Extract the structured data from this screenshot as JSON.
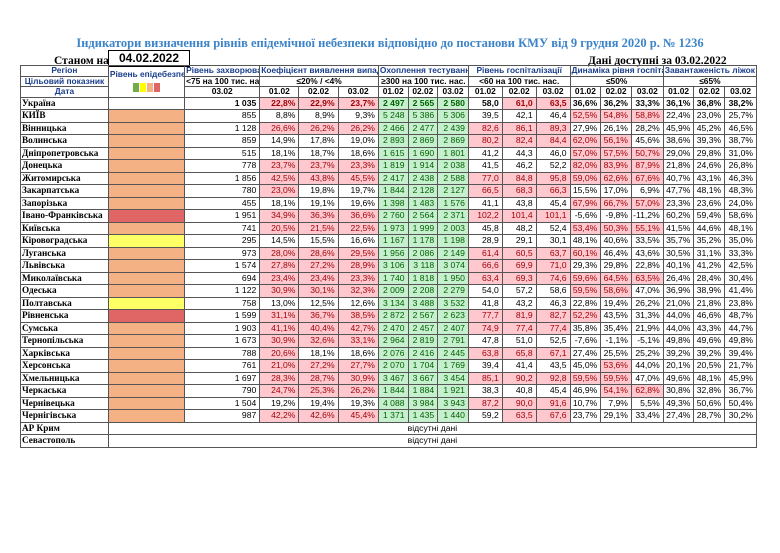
{
  "title": "Індикатори визначення рівнів епідемічної небезпеки відповідно до постанови КМУ від 9 грудня 2020 р. № 1236",
  "status_label": "Станом на",
  "status_date": "04.02.2022",
  "available_label": "Дані доступні за 03.02.2022",
  "headers": {
    "region": "Регіон",
    "target": "Цільовий показник",
    "date": "Дата",
    "risk": "Рівень епідебезпеки",
    "incidence": "Рівень захворюваності",
    "incidence_note": "<75 на 100 тис. нас.",
    "detection": "Коефіцієнт виявлення випадків інфікування",
    "detection_note": "≤20% / <4%",
    "testing": "Охоплення тестуванням",
    "testing_note": "≥300 на 100 тис. нас.",
    "hosp": "Рівень госпіталізації",
    "hosp_note": "<60 на 100 тис. нас.",
    "hosp_dyn": "Динаміка рівня госпіталізації",
    "hosp_dyn_note": "≤50%",
    "beds": "Завантаженість ліжок з киснем",
    "beds_note": "≤65%",
    "d1": "01.02",
    "d2": "02.02",
    "d3": "03.02"
  },
  "risk_bar_colors": [
    "#70ad47",
    "#ffff00",
    "#f4b183",
    "#e06666"
  ],
  "rows": [
    {
      "name": "Україна",
      "risk": "none",
      "inc": "1 035",
      "det": [
        "22,8%",
        "22,9%",
        "23,7%"
      ],
      "det_c": [
        "r",
        "r",
        "r"
      ],
      "test": [
        "2 497",
        "2 565",
        "2 580"
      ],
      "hosp": [
        "58,0",
        "61,0",
        "63,5"
      ],
      "hosp_c": [
        "",
        "r",
        "r"
      ],
      "dyn": [
        "36,6%",
        "36,2%",
        "33,3%"
      ],
      "beds": [
        "36,1%",
        "36,8%",
        "38,2%"
      ],
      "bold": true
    },
    {
      "name": "КИЇВ",
      "risk": "orange",
      "inc": "855",
      "det": [
        "8,8%",
        "8,9%",
        "9,3%"
      ],
      "det_c": [
        "",
        "",
        ""
      ],
      "test": [
        "5 248",
        "5 386",
        "5 306"
      ],
      "hosp": [
        "39,5",
        "42,1",
        "46,4"
      ],
      "hosp_c": [
        "",
        "",
        ""
      ],
      "dyn": [
        "52,5%",
        "54,8%",
        "58,8%"
      ],
      "dyn_c": [
        "r",
        "r",
        "r"
      ],
      "beds": [
        "22,4%",
        "23,0%",
        "25,7%"
      ]
    },
    {
      "name": "Вінницька",
      "risk": "orange",
      "inc": "1 128",
      "det": [
        "26,6%",
        "26,2%",
        "26,2%"
      ],
      "det_c": [
        "r",
        "r",
        "r"
      ],
      "test": [
        "2 466",
        "2 477",
        "2 439"
      ],
      "hosp": [
        "82,6",
        "86,1",
        "89,3"
      ],
      "hosp_c": [
        "r",
        "r",
        "r"
      ],
      "dyn": [
        "27,9%",
        "26,1%",
        "28,2%"
      ],
      "beds": [
        "45,9%",
        "45,2%",
        "46,5%"
      ]
    },
    {
      "name": "Волинська",
      "risk": "orange",
      "inc": "859",
      "det": [
        "14,9%",
        "17,8%",
        "19,0%"
      ],
      "det_c": [
        "",
        "",
        ""
      ],
      "test": [
        "2 893",
        "2 869",
        "2 869"
      ],
      "hosp": [
        "80,2",
        "82,4",
        "84,4"
      ],
      "hosp_c": [
        "r",
        "r",
        "r"
      ],
      "dyn": [
        "62,0%",
        "56,1%",
        "45,6%"
      ],
      "dyn_c": [
        "r",
        "r",
        ""
      ],
      "beds": [
        "38,6%",
        "39,3%",
        "38,7%"
      ]
    },
    {
      "name": "Дніпропетровська",
      "risk": "orange",
      "inc": "515",
      "det": [
        "18,1%",
        "18,7%",
        "18,6%"
      ],
      "det_c": [
        "",
        "",
        ""
      ],
      "test": [
        "1 615",
        "1 690",
        "1 801"
      ],
      "hosp": [
        "41,2",
        "44,3",
        "46,0"
      ],
      "hosp_c": [
        "",
        "",
        ""
      ],
      "dyn": [
        "57,0%",
        "57,5%",
        "50,7%"
      ],
      "dyn_c": [
        "r",
        "r",
        "r"
      ],
      "beds": [
        "29,0%",
        "29,8%",
        "31,0%"
      ]
    },
    {
      "name": "Донецька",
      "risk": "orange",
      "inc": "778",
      "det": [
        "23,7%",
        "23,7%",
        "23,3%"
      ],
      "det_c": [
        "r",
        "r",
        "r"
      ],
      "test": [
        "1 819",
        "1 914",
        "2 038"
      ],
      "hosp": [
        "41,5",
        "46,2",
        "52,2"
      ],
      "hosp_c": [
        "",
        "",
        ""
      ],
      "dyn": [
        "82,0%",
        "83,9%",
        "87,9%"
      ],
      "dyn_c": [
        "r",
        "r",
        "r"
      ],
      "beds": [
        "21,8%",
        "24,6%",
        "26,8%"
      ]
    },
    {
      "name": "Житомирська",
      "risk": "orange",
      "inc": "1 856",
      "det": [
        "42,5%",
        "43,8%",
        "45,5%"
      ],
      "det_c": [
        "r",
        "r",
        "r"
      ],
      "test": [
        "2 417",
        "2 438",
        "2 588"
      ],
      "hosp": [
        "77,0",
        "84,8",
        "95,8"
      ],
      "hosp_c": [
        "r",
        "r",
        "r"
      ],
      "dyn": [
        "59,0%",
        "62,6%",
        "67,6%"
      ],
      "dyn_c": [
        "r",
        "r",
        "r"
      ],
      "beds": [
        "40,7%",
        "43,1%",
        "46,3%"
      ]
    },
    {
      "name": "Закарпатська",
      "risk": "orange",
      "inc": "780",
      "det": [
        "23,0%",
        "19,8%",
        "19,7%"
      ],
      "det_c": [
        "r",
        "",
        ""
      ],
      "test": [
        "1 844",
        "2 128",
        "2 127"
      ],
      "hosp": [
        "66,5",
        "68,3",
        "66,3"
      ],
      "hosp_c": [
        "r",
        "r",
        "r"
      ],
      "dyn": [
        "15,5%",
        "17,0%",
        "6,9%"
      ],
      "beds": [
        "47,7%",
        "48,1%",
        "48,3%"
      ]
    },
    {
      "name": "Запорізька",
      "risk": "orange",
      "inc": "455",
      "det": [
        "18,1%",
        "19,1%",
        "19,6%"
      ],
      "det_c": [
        "",
        "",
        ""
      ],
      "test": [
        "1 398",
        "1 483",
        "1 576"
      ],
      "hosp": [
        "41,1",
        "43,8",
        "45,4"
      ],
      "hosp_c": [
        "",
        "",
        ""
      ],
      "dyn": [
        "67,9%",
        "66,7%",
        "57,0%"
      ],
      "dyn_c": [
        "r",
        "r",
        "r"
      ],
      "beds": [
        "23,3%",
        "23,6%",
        "24,0%"
      ]
    },
    {
      "name": "Івано-Франківська",
      "risk": "red",
      "inc": "1 951",
      "det": [
        "34,9%",
        "36,3%",
        "36,6%"
      ],
      "det_c": [
        "r",
        "r",
        "r"
      ],
      "test": [
        "2 760",
        "2 564",
        "2 371"
      ],
      "hosp": [
        "102,2",
        "101,4",
        "101,1"
      ],
      "hosp_c": [
        "r",
        "r",
        "r"
      ],
      "dyn": [
        "-5,6%",
        "-9,8%",
        "-11,2%"
      ],
      "beds": [
        "60,2%",
        "59,4%",
        "58,6%"
      ]
    },
    {
      "name": "Київська",
      "risk": "orange",
      "inc": "741",
      "det": [
        "20,5%",
        "21,5%",
        "22,5%"
      ],
      "det_c": [
        "r",
        "r",
        "r"
      ],
      "test": [
        "1 973",
        "1 999",
        "2 003"
      ],
      "hosp": [
        "45,8",
        "48,2",
        "52,4"
      ],
      "hosp_c": [
        "",
        "",
        ""
      ],
      "dyn": [
        "53,4%",
        "50,3%",
        "55,1%"
      ],
      "dyn_c": [
        "r",
        "r",
        "r"
      ],
      "beds": [
        "41,5%",
        "44,6%",
        "48,1%"
      ]
    },
    {
      "name": "Кіровоградська",
      "risk": "yellow",
      "inc": "295",
      "det": [
        "14,5%",
        "15,5%",
        "16,6%"
      ],
      "det_c": [
        "",
        "",
        ""
      ],
      "test": [
        "1 167",
        "1 178",
        "1 198"
      ],
      "hosp": [
        "28,9",
        "29,1",
        "30,1"
      ],
      "hosp_c": [
        "",
        "",
        ""
      ],
      "dyn": [
        "48,1%",
        "40,6%",
        "33,5%"
      ],
      "beds": [
        "35,7%",
        "35,2%",
        "35,0%"
      ]
    },
    {
      "name": "Луганська",
      "risk": "orange",
      "inc": "973",
      "det": [
        "28,0%",
        "28,6%",
        "29,5%"
      ],
      "det_c": [
        "r",
        "r",
        "r"
      ],
      "test": [
        "1 956",
        "2 086",
        "2 149"
      ],
      "hosp": [
        "61,4",
        "60,5",
        "63,7"
      ],
      "hosp_c": [
        "r",
        "r",
        "r"
      ],
      "dyn": [
        "60,1%",
        "46,4%",
        "43,6%"
      ],
      "dyn_c": [
        "r",
        "",
        ""
      ],
      "beds": [
        "30,5%",
        "31,1%",
        "33,3%"
      ]
    },
    {
      "name": "Львівська",
      "risk": "orange",
      "inc": "1 574",
      "det": [
        "27,8%",
        "27,2%",
        "28,9%"
      ],
      "det_c": [
        "r",
        "r",
        "r"
      ],
      "test": [
        "3 106",
        "3 118",
        "3 074"
      ],
      "hosp": [
        "66,6",
        "69,9",
        "71,0"
      ],
      "hosp_c": [
        "r",
        "r",
        "r"
      ],
      "dyn": [
        "29,3%",
        "29,8%",
        "22,8%"
      ],
      "beds": [
        "40,1%",
        "41,2%",
        "42,5%"
      ]
    },
    {
      "name": "Миколаївська",
      "risk": "orange",
      "inc": "694",
      "det": [
        "23,4%",
        "23,4%",
        "23,3%"
      ],
      "det_c": [
        "r",
        "r",
        "r"
      ],
      "test": [
        "1 740",
        "1 818",
        "1 950"
      ],
      "hosp": [
        "63,4",
        "69,3",
        "74,6"
      ],
      "hosp_c": [
        "r",
        "r",
        "r"
      ],
      "dyn": [
        "59,6%",
        "64,5%",
        "63,5%"
      ],
      "dyn_c": [
        "r",
        "r",
        "r"
      ],
      "beds": [
        "26,4%",
        "28,4%",
        "30,4%"
      ]
    },
    {
      "name": "Одеська",
      "risk": "orange",
      "inc": "1 122",
      "det": [
        "30,9%",
        "30,1%",
        "32,3%"
      ],
      "det_c": [
        "r",
        "r",
        "r"
      ],
      "test": [
        "2 009",
        "2 208",
        "2 279"
      ],
      "hosp": [
        "54,0",
        "57,2",
        "58,6"
      ],
      "hosp_c": [
        "",
        "",
        ""
      ],
      "dyn": [
        "59,5%",
        "58,6%",
        "47,0%"
      ],
      "dyn_c": [
        "r",
        "r",
        ""
      ],
      "beds": [
        "36,9%",
        "38,9%",
        "41,4%"
      ]
    },
    {
      "name": "Полтавська",
      "risk": "yellow",
      "inc": "758",
      "det": [
        "13,0%",
        "12,5%",
        "12,6%"
      ],
      "det_c": [
        "",
        "",
        ""
      ],
      "test": [
        "3 134",
        "3 488",
        "3 532"
      ],
      "hosp": [
        "41,8",
        "43,2",
        "46,3"
      ],
      "hosp_c": [
        "",
        "",
        ""
      ],
      "dyn": [
        "22,8%",
        "19,4%",
        "26,2%"
      ],
      "beds": [
        "21,0%",
        "21,8%",
        "23,8%"
      ]
    },
    {
      "name": "Рівненська",
      "risk": "red",
      "inc": "1 599",
      "det": [
        "31,1%",
        "36,7%",
        "38,5%"
      ],
      "det_c": [
        "r",
        "r",
        "r"
      ],
      "test": [
        "2 872",
        "2 567",
        "2 623"
      ],
      "hosp": [
        "77,7",
        "81,9",
        "82,7"
      ],
      "hosp_c": [
        "r",
        "r",
        "r"
      ],
      "dyn": [
        "52,2%",
        "43,5%",
        "31,3%"
      ],
      "dyn_c": [
        "r",
        "",
        ""
      ],
      "beds": [
        "44,0%",
        "46,6%",
        "48,7%"
      ]
    },
    {
      "name": "Сумська",
      "risk": "orange",
      "inc": "1 903",
      "det": [
        "41,1%",
        "40,4%",
        "42,7%"
      ],
      "det_c": [
        "r",
        "r",
        "r"
      ],
      "test": [
        "2 470",
        "2 457",
        "2 407"
      ],
      "hosp": [
        "74,9",
        "77,4",
        "77,4"
      ],
      "hosp_c": [
        "r",
        "r",
        "r"
      ],
      "dyn": [
        "35,8%",
        "35,4%",
        "21,9%"
      ],
      "beds": [
        "44,0%",
        "43,3%",
        "44,7%"
      ]
    },
    {
      "name": "Тернопільська",
      "risk": "orange",
      "inc": "1 673",
      "det": [
        "30,9%",
        "32,6%",
        "33,1%"
      ],
      "det_c": [
        "r",
        "r",
        "r"
      ],
      "test": [
        "2 964",
        "2 819",
        "2 791"
      ],
      "hosp": [
        "47,8",
        "51,0",
        "52,5"
      ],
      "hosp_c": [
        "",
        "",
        ""
      ],
      "dyn": [
        "-7,6%",
        "-1,1%",
        "-5,1%"
      ],
      "beds": [
        "49,8%",
        "49,6%",
        "49,8%"
      ]
    },
    {
      "name": "Харківська",
      "risk": "orange",
      "inc": "788",
      "det": [
        "20,6%",
        "18,1%",
        "18,6%"
      ],
      "det_c": [
        "r",
        "",
        ""
      ],
      "test": [
        "2 076",
        "2 416",
        "2 445"
      ],
      "hosp": [
        "63,8",
        "65,8",
        "67,1"
      ],
      "hosp_c": [
        "r",
        "r",
        "r"
      ],
      "dyn": [
        "27,4%",
        "25,5%",
        "25,2%"
      ],
      "beds": [
        "39,2%",
        "39,2%",
        "39,4%"
      ]
    },
    {
      "name": "Херсонська",
      "risk": "orange",
      "inc": "761",
      "det": [
        "21,0%",
        "27,2%",
        "27,7%"
      ],
      "det_c": [
        "r",
        "r",
        "r"
      ],
      "test": [
        "2 070",
        "1 704",
        "1 769"
      ],
      "hosp": [
        "39,4",
        "41,4",
        "43,5"
      ],
      "hosp_c": [
        "",
        "",
        ""
      ],
      "dyn": [
        "45,0%",
        "53,6%",
        "44,0%"
      ],
      "dyn_c": [
        "",
        "r",
        ""
      ],
      "beds": [
        "20,1%",
        "20,5%",
        "21,7%"
      ]
    },
    {
      "name": "Хмельницька",
      "risk": "orange",
      "inc": "1 697",
      "det": [
        "28,3%",
        "28,7%",
        "30,9%"
      ],
      "det_c": [
        "r",
        "r",
        "r"
      ],
      "test": [
        "3 467",
        "3 667",
        "3 454"
      ],
      "hosp": [
        "85,1",
        "90,2",
        "92,8"
      ],
      "hosp_c": [
        "r",
        "r",
        "r"
      ],
      "dyn": [
        "59,5%",
        "59,5%",
        "47,0%"
      ],
      "dyn_c": [
        "r",
        "r",
        ""
      ],
      "beds": [
        "49,6%",
        "48,1%",
        "45,9%"
      ]
    },
    {
      "name": "Черкаська",
      "risk": "orange",
      "inc": "790",
      "det": [
        "24,7%",
        "25,3%",
        "26,2%"
      ],
      "det_c": [
        "r",
        "r",
        "r"
      ],
      "test": [
        "1 844",
        "1 884",
        "1 921"
      ],
      "hosp": [
        "38,3",
        "40,8",
        "45,4"
      ],
      "hosp_c": [
        "",
        "",
        ""
      ],
      "dyn": [
        "46,9%",
        "54,1%",
        "62,8%"
      ],
      "dyn_c": [
        "",
        "r",
        "r"
      ],
      "beds": [
        "30,8%",
        "32,8%",
        "36,7%"
      ]
    },
    {
      "name": "Чернівецька",
      "risk": "orange",
      "inc": "1 504",
      "det": [
        "19,2%",
        "19,4%",
        "19,3%"
      ],
      "det_c": [
        "",
        "",
        ""
      ],
      "test": [
        "4 088",
        "3 984",
        "3 943"
      ],
      "hosp": [
        "87,2",
        "90,0",
        "91,6"
      ],
      "hosp_c": [
        "r",
        "r",
        "r"
      ],
      "dyn": [
        "10,7%",
        "7,9%",
        "5,5%"
      ],
      "beds": [
        "49,3%",
        "50,6%",
        "50,4%"
      ]
    },
    {
      "name": "Чернігівська",
      "risk": "orange",
      "inc": "987",
      "det": [
        "42,2%",
        "42,6%",
        "45,4%"
      ],
      "det_c": [
        "r",
        "r",
        "r"
      ],
      "test": [
        "1 371",
        "1 435",
        "1 440"
      ],
      "hosp": [
        "59,2",
        "63,5",
        "67,6"
      ],
      "hosp_c": [
        "",
        "r",
        "r"
      ],
      "dyn": [
        "23,7%",
        "29,1%",
        "33,4%"
      ],
      "beds": [
        "27,4%",
        "28,7%",
        "30,2%"
      ]
    }
  ],
  "missing_rows": [
    {
      "name": "АР Крим",
      "text": "відсутні дані"
    },
    {
      "name": "Севастополь",
      "text": "відсутні дані"
    }
  ]
}
